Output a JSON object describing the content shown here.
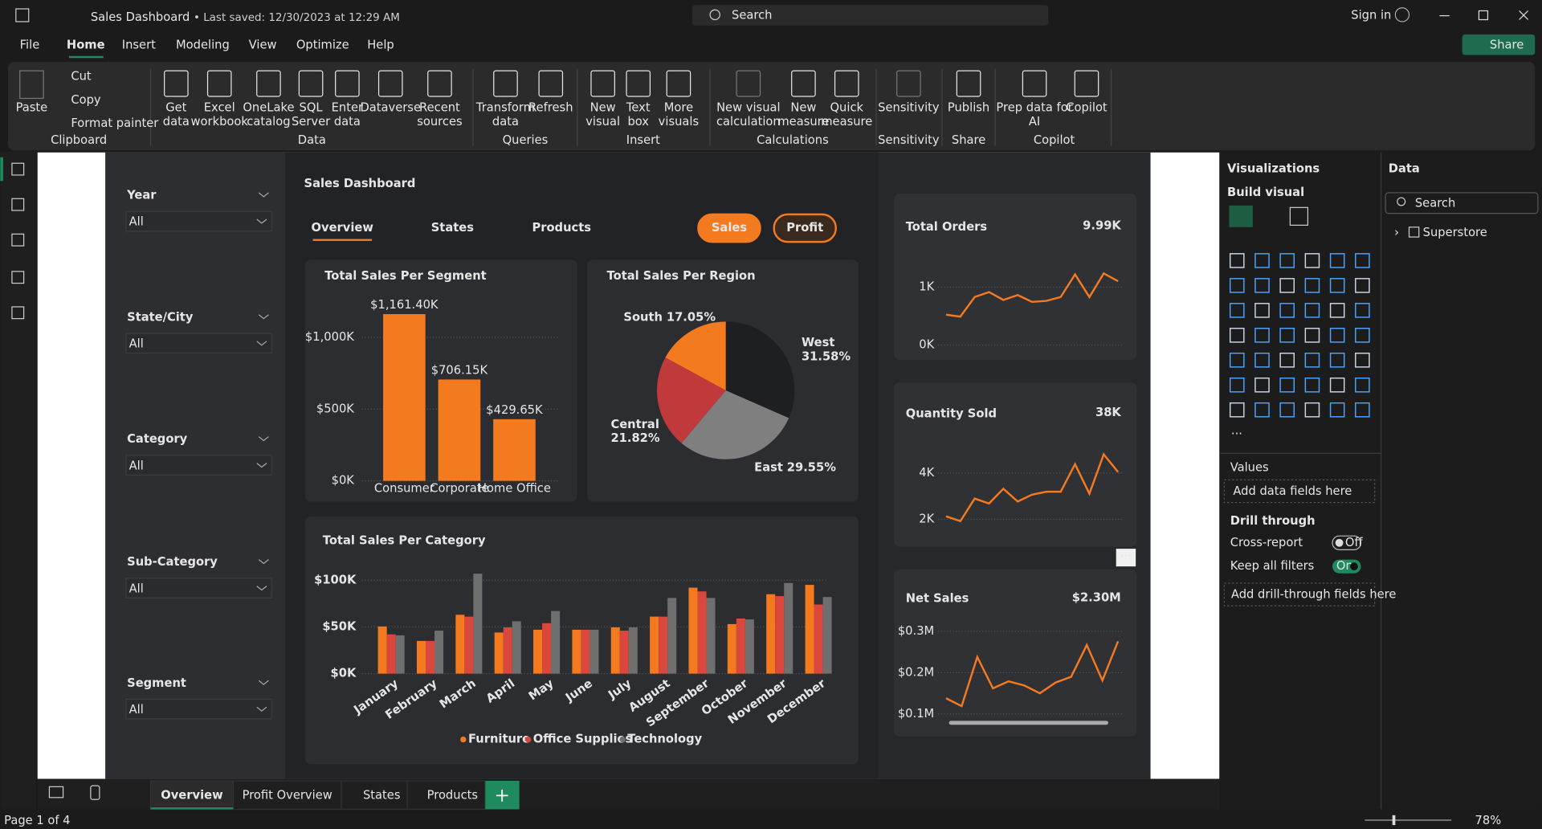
{
  "title_bar": {
    "file_name": "Sales Dashboard",
    "saved": "• Last saved: 12/30/2023 at 12:29 AM",
    "search": "Search",
    "sign_in": "Sign in"
  },
  "menu": {
    "items": [
      "File",
      "Home",
      "Insert",
      "Modeling",
      "View",
      "Optimize",
      "Help"
    ],
    "share": "Share"
  },
  "ribbon": {
    "groups": [
      {
        "name": "Clipboard",
        "items": [
          [
            "Paste"
          ],
          [
            "Cut"
          ],
          [
            "Copy"
          ],
          [
            "Format painter"
          ]
        ]
      },
      {
        "name": "Data",
        "items": [
          [
            "Get",
            "data"
          ],
          [
            "Excel",
            "workbook"
          ],
          [
            "OneLake",
            "catalog"
          ],
          [
            "SQL",
            "Server"
          ],
          [
            "Enter",
            "data"
          ],
          [
            "Dataverse"
          ],
          [
            "Recent",
            "sources"
          ]
        ]
      },
      {
        "name": "Queries",
        "items": [
          [
            "Transform",
            "data"
          ],
          [
            "Refresh"
          ]
        ]
      },
      {
        "name": "Insert",
        "items": [
          [
            "New",
            "visual"
          ],
          [
            "Text",
            "box"
          ],
          [
            "More",
            "visuals"
          ]
        ]
      },
      {
        "name": "Calculations",
        "items": [
          [
            "New visual",
            "calculation"
          ],
          [
            "New",
            "measure"
          ],
          [
            "Quick",
            "measure"
          ]
        ]
      },
      {
        "name": "Sensitivity",
        "items": [
          [
            "Sensitivity"
          ]
        ]
      },
      {
        "name": "Share",
        "items": [
          [
            "Publish"
          ]
        ]
      },
      {
        "name": "Copilot",
        "items": [
          [
            "Prep data for",
            "AI"
          ],
          [
            "Copilot"
          ]
        ]
      }
    ]
  },
  "slicers": [
    {
      "label": "Year",
      "value": "All"
    },
    {
      "label": "State/City",
      "value": "All"
    },
    {
      "label": "Category",
      "value": "All"
    },
    {
      "label": "Sub-Category",
      "value": "All"
    },
    {
      "label": "Segment",
      "value": "All"
    }
  ],
  "dashboard": {
    "title": "Sales Dashboard",
    "tabs": [
      "Overview",
      "States",
      "Products"
    ],
    "buttons": [
      "Sales",
      "Profit"
    ]
  },
  "chart_data": [
    {
      "type": "bar",
      "title": "Total Sales Per Segment",
      "categories": [
        "Consumer",
        "Corporate",
        "Home Office"
      ],
      "values": [
        1161.4,
        706.15,
        429.65
      ],
      "value_labels": [
        "$1,161.40K",
        "$706.15K",
        "$429.65K"
      ],
      "color": "#f47a20",
      "ylim": [
        0,
        1200
      ],
      "yticks": [
        {
          "value": 0,
          "label": "$0K"
        },
        {
          "value": 500,
          "label": "$500K"
        },
        {
          "value": 1000,
          "label": "$1,000K"
        }
      ],
      "grid": true
    },
    {
      "type": "pie",
      "title": "Total Sales Per Region",
      "categories": [
        "West",
        "East",
        "Central",
        "South"
      ],
      "values": [
        31.58,
        29.55,
        21.82,
        17.05
      ],
      "value_labels": [
        "31.58%",
        "29.55%",
        "21.82%",
        "17.05%"
      ],
      "colors": [
        "#1e1f22",
        "#7f7f7f",
        "#c0393b",
        "#f47a20"
      ]
    },
    {
      "type": "grouped_bar",
      "title": "Total Sales Per Category",
      "categories": [
        "January",
        "February",
        "March",
        "April",
        "May",
        "June",
        "July",
        "August",
        "September",
        "October",
        "November",
        "December"
      ],
      "series": [
        {
          "name": "Furniture",
          "color": "#f47a20",
          "values": [
            50.5,
            35,
            63,
            44,
            47,
            47,
            49.5,
            61,
            92,
            53,
            85,
            95
          ]
        },
        {
          "name": "Office Supplies",
          "color": "#d9473d",
          "values": [
            42,
            35,
            61,
            49.5,
            54,
            47,
            46,
            61,
            88,
            59,
            83,
            74
          ]
        },
        {
          "name": "Technology",
          "color": "#6f6f6f",
          "values": [
            41,
            46,
            107,
            56,
            67,
            47,
            49.5,
            81,
            81,
            58,
            97,
            82
          ]
        }
      ],
      "ylim": [
        0,
        110
      ],
      "yticks": [
        {
          "value": 0,
          "label": "$0K"
        },
        {
          "value": 50,
          "label": "$50K"
        },
        {
          "value": 100,
          "label": "$100K"
        }
      ],
      "grid": true
    },
    {
      "type": "line",
      "values": [
        525,
        492,
        830,
        915,
        780,
        864,
        746,
        763,
        830,
        1220,
        830,
        1237,
        1102
      ],
      "color": "#f47a20",
      "ylim": [
        0,
        1400
      ],
      "yticks": [
        {
          "value": 0,
          "label": "0K"
        },
        {
          "value": 1000,
          "label": "1K"
        }
      ],
      "grid": true
    },
    {
      "type": "line",
      "values": [
        2128,
        1915,
        2894,
        2681,
        3319,
        2766,
        3064,
        3191,
        3191,
        4383,
        3106,
        4809,
        4043
      ],
      "color": "#f47a20",
      "ylim": [
        1800,
        5000
      ],
      "yticks": [
        {
          "value": 2000,
          "label": "2K"
        },
        {
          "value": 4000,
          "label": "4K"
        }
      ],
      "grid": true
    },
    {
      "type": "line",
      "values": [
        0.138,
        0.119,
        0.238,
        0.162,
        0.179,
        0.169,
        0.15,
        0.176,
        0.19,
        0.267,
        0.181,
        0.276
      ],
      "color": "#f47a20",
      "ylim": [
        0.09,
        0.3
      ],
      "yticks": [
        {
          "value": 0.1,
          "label": "$0.1M"
        },
        {
          "value": 0.2,
          "label": "$0.2M"
        },
        {
          "value": 0.3,
          "label": "$0.3M"
        }
      ],
      "grid": true
    }
  ],
  "cards": [
    {
      "title": "Total Orders",
      "value": "9.99K"
    },
    {
      "title": "Quantity Sold",
      "value": "38K"
    },
    {
      "title": "Net Sales",
      "value": "$2.30M"
    }
  ],
  "visualizations": {
    "title": "Visualizations",
    "build": "Build visual",
    "values": "Values",
    "values_well": "Add data fields here",
    "drill": "Drill through",
    "cross_report": "Cross-report",
    "cross_state": "Off",
    "keep_filters": "Keep all filters",
    "keep_state": "On",
    "drill_well": "Add drill-through fields here"
  },
  "data_pane": {
    "title": "Data",
    "search": "Search",
    "table": "Superstore"
  },
  "page_tabs": [
    "Overview",
    "Profit Overview",
    "States",
    "Products"
  ],
  "status": {
    "page": "Page 1 of 4",
    "zoom": "78%"
  }
}
